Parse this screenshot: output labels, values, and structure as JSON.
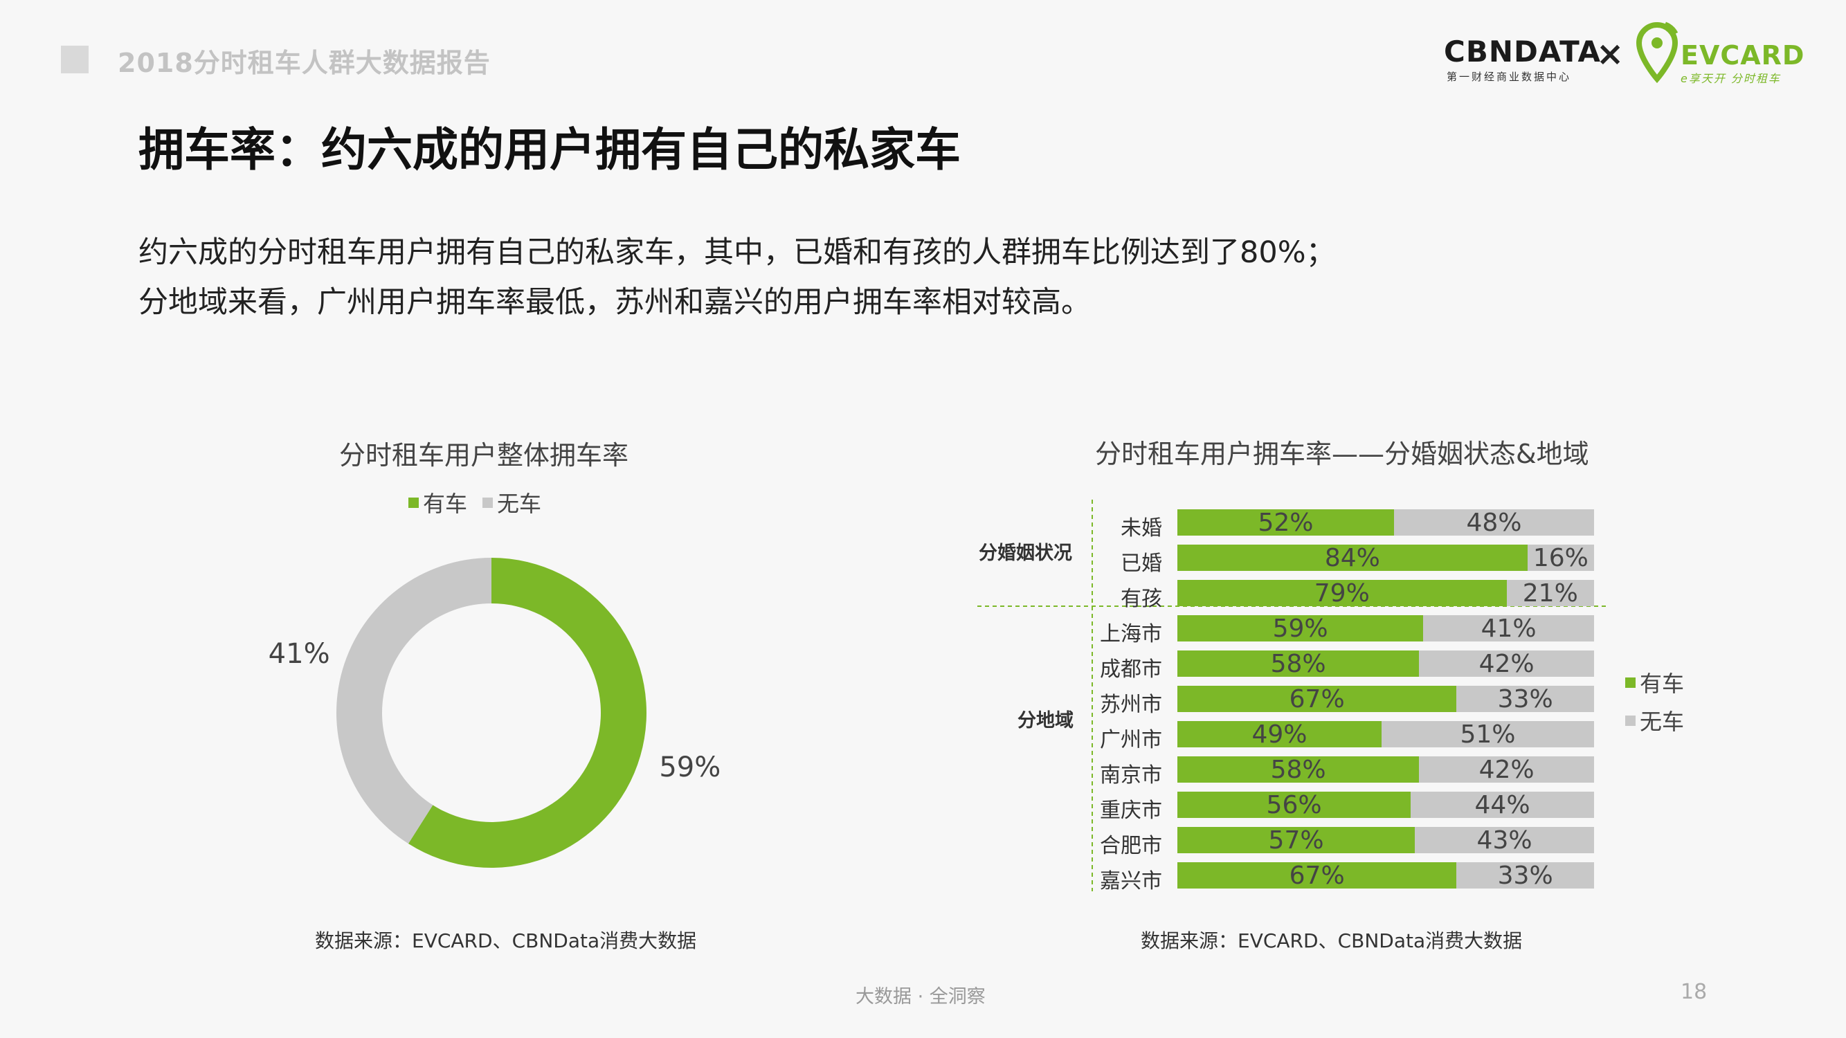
{
  "header": {
    "report_title": "2018分时租车人群大数据报告",
    "logo_cbn": "CBNDATA",
    "logo_cbn_sub": "第一财经商业数据中心",
    "logo_x": "×",
    "logo_ev": "EVCARD",
    "logo_ev_sub": "e享天开 分时租车"
  },
  "main": {
    "title": "拥车率：约六成的用户拥有自己的私家车",
    "desc_line1": "约六成的分时租车用户拥有自己的私家车，其中，已婚和有孩的人群拥车比例达到了80%；",
    "desc_line2": "分地域来看，广州用户拥车率最低，苏州和嘉兴的用户拥车率相对较高。"
  },
  "colors": {
    "own": "#7cb828",
    "none": "#c8c8c8"
  },
  "chart_data": [
    {
      "type": "pie",
      "title": "分时租车用户整体拥车率",
      "legend": [
        "有车",
        "无车"
      ],
      "legend_position": "top",
      "categories": [
        "有车",
        "无车"
      ],
      "values": [
        59,
        41
      ],
      "labels": [
        "59%",
        "41%"
      ],
      "source": "数据来源：EVCARD、CBNData消费大数据"
    },
    {
      "type": "bar",
      "title": "分时租车用户拥车率——分婚姻状态&地域",
      "legend": [
        "有车",
        "无车"
      ],
      "legend_position": "right",
      "groups": [
        {
          "name": "分婚姻状况",
          "categories": [
            "未婚",
            "已婚",
            "有孩"
          ]
        },
        {
          "name": "分地域",
          "categories": [
            "上海市",
            "成都市",
            "苏州市",
            "广州市",
            "南京市",
            "重庆市",
            "合肥市",
            "嘉兴市"
          ]
        }
      ],
      "categories": [
        "未婚",
        "已婚",
        "有孩",
        "上海市",
        "成都市",
        "苏州市",
        "广州市",
        "南京市",
        "重庆市",
        "合肥市",
        "嘉兴市"
      ],
      "series": [
        {
          "name": "有车",
          "values": [
            52,
            84,
            79,
            59,
            58,
            67,
            49,
            58,
            56,
            57,
            67
          ]
        },
        {
          "name": "无车",
          "values": [
            48,
            16,
            21,
            41,
            42,
            33,
            51,
            42,
            44,
            43,
            33
          ]
        }
      ],
      "stacked": true,
      "orientation": "horizontal",
      "xlim": [
        0,
        100
      ],
      "source": "数据来源：EVCARD、CBNData消费大数据"
    }
  ],
  "footer": {
    "text": "大数据 · 全洞察",
    "page": "18"
  }
}
